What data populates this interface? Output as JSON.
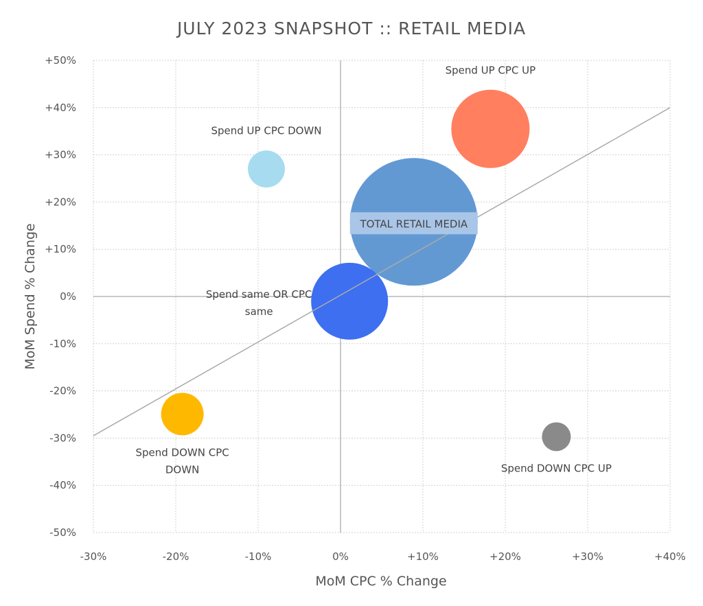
{
  "chart_data": {
    "type": "bubble",
    "title": "JULY 2023 SNAPSHOT :: RETAIL MEDIA",
    "xlabel": "MoM CPC % Change",
    "ylabel": "MoM Spend % Change",
    "xlim": [
      -30,
      40
    ],
    "ylim": [
      -50,
      50
    ],
    "xticks": [
      -30,
      -20,
      -10,
      0,
      10,
      20,
      30,
      40
    ],
    "yticks": [
      -50,
      -40,
      -30,
      -20,
      -10,
      0,
      10,
      20,
      30,
      40,
      50
    ],
    "xtick_labels": [
      "-30%",
      "-20%",
      "-10%",
      "0%",
      "+10%",
      "+20%",
      "+30%",
      "+40%"
    ],
    "ytick_labels": [
      "-50%",
      "-40%",
      "-30%",
      "-20%",
      "-10%",
      "0%",
      "+10%",
      "+20%",
      "+30%",
      "+40%",
      "+50%"
    ],
    "grid": true,
    "trendline": {
      "x": [
        -30,
        40
      ],
      "y": [
        -29.5,
        40
      ],
      "color": "#aaaaaa"
    },
    "points": [
      {
        "label": [
          "Spend UP CPC DOWN"
        ],
        "x": -9,
        "y": 27,
        "size": 8.4,
        "color": "#a6dbf0",
        "label_pos": "above"
      },
      {
        "label": [
          "Spend UP CPC UP"
        ],
        "x": 18.2,
        "y": 35.5,
        "size": 37.6,
        "color": "#ff7f5e",
        "label_pos": "above"
      },
      {
        "label": [
          "TOTAL RETAIL MEDIA"
        ],
        "x": 8.9,
        "y": 15.8,
        "size": 100,
        "color": "#6399d3",
        "label_pos": "center"
      },
      {
        "label": [
          "Spend same OR CPC",
          "same"
        ],
        "x": 1.1,
        "y": -1,
        "size": 36.3,
        "color": "#3d6ff0",
        "label_pos": "left"
      },
      {
        "label": [
          "Spend DOWN CPC",
          "DOWN"
        ],
        "x": -19.2,
        "y": -24.9,
        "size": 11.1,
        "color": "#ffb800",
        "label_pos": "below"
      },
      {
        "label": [
          "Spend DOWN CPC UP"
        ],
        "x": 26.2,
        "y": -29.7,
        "size": 5.1,
        "color": "#8a8a8a",
        "label_pos": "below"
      }
    ]
  }
}
